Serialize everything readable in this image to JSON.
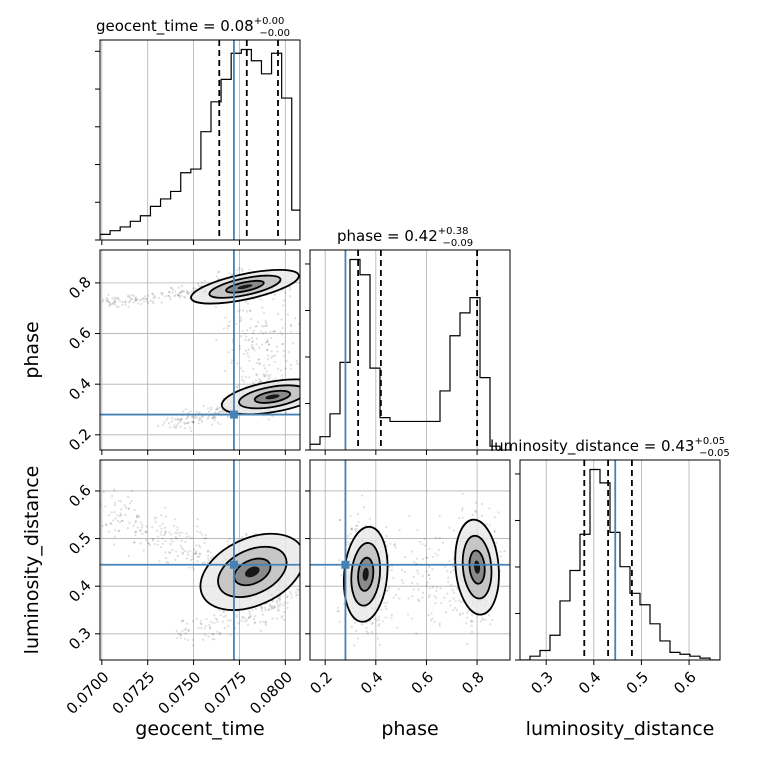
{
  "chart_data": {
    "type": "corner",
    "parameters": [
      "geocent_time",
      "phase",
      "luminosity_distance"
    ],
    "axis_labels": {
      "geocent_time": "geocent_time",
      "phase": "phase",
      "luminosity_distance": "luminosity_distance"
    },
    "titles": [
      {
        "param": "geocent_time",
        "prefix": "geocent_time = 0.08",
        "sup": "+0.00",
        "sub": "−0.00"
      },
      {
        "param": "phase",
        "prefix": "phase = 0.42",
        "sup": "+0.38",
        "sub": "−0.09"
      },
      {
        "param": "luminosity_distance",
        "prefix": "luminosity_distance = 0.43",
        "sup": "+0.05",
        "sub": "−0.05"
      }
    ],
    "ranges": {
      "geocent_time": [
        0.0699,
        0.0808
      ],
      "phase": [
        0.14,
        0.93
      ],
      "luminosity_distance": [
        0.245,
        0.665
      ]
    },
    "ticks": {
      "geocent_time": [
        "0.0700",
        "0.0725",
        "0.0750",
        "0.0775",
        "0.0800"
      ],
      "phase": [
        "0.2",
        "0.4",
        "0.6",
        "0.8"
      ],
      "phase_y": [
        "0.2",
        "0.4",
        "0.6",
        "0.8"
      ],
      "luminosity_distance": [
        "0.3",
        "0.4",
        "0.5",
        "0.6"
      ]
    },
    "truths": {
      "geocent_time": 0.0772,
      "phase": 0.28,
      "luminosity_distance": 0.445
    },
    "quantiles": {
      "geocent_time": [
        0.0764,
        0.0779,
        0.0796
      ],
      "phase": [
        0.33,
        0.42,
        0.8
      ],
      "luminosity_distance": [
        0.38,
        0.43,
        0.48
      ]
    },
    "histograms": {
      "geocent_time": {
        "edges": [
          0.0699,
          0.07045,
          0.071,
          0.07155,
          0.0721,
          0.07265,
          0.0732,
          0.07375,
          0.0743,
          0.07485,
          0.0754,
          0.07595,
          0.0765,
          0.07705,
          0.0776,
          0.07815,
          0.0787,
          0.07925,
          0.0798,
          0.08035,
          0.0808
        ],
        "counts": [
          3,
          5,
          7,
          10,
          13,
          18,
          22,
          26,
          36,
          38,
          58,
          74,
          86,
          100,
          102,
          96,
          89,
          100,
          76,
          16
        ]
      },
      "phase": {
        "edges": [
          0.14,
          0.1795,
          0.219,
          0.2585,
          0.298,
          0.3375,
          0.377,
          0.4165,
          0.456,
          0.4955,
          0.535,
          0.5745,
          0.614,
          0.6535,
          0.693,
          0.7325,
          0.772,
          0.8115,
          0.851,
          0.8905,
          0.93
        ],
        "counts": [
          3,
          7,
          19,
          46,
          100,
          92,
          43,
          17,
          15,
          15,
          15,
          15,
          15,
          31,
          60,
          72,
          80,
          38,
          2,
          0
        ]
      },
      "luminosity_distance": {
        "edges": [
          0.245,
          0.266,
          0.287,
          0.308,
          0.329,
          0.35,
          0.371,
          0.392,
          0.413,
          0.434,
          0.455,
          0.476,
          0.497,
          0.518,
          0.539,
          0.56,
          0.581,
          0.602,
          0.623,
          0.644,
          0.665
        ],
        "counts": [
          0,
          2,
          5,
          13,
          31,
          47,
          66,
          100,
          93,
          67,
          49,
          35,
          29,
          19,
          10,
          4,
          3,
          2,
          1,
          0
        ]
      }
    },
    "grid": true
  }
}
